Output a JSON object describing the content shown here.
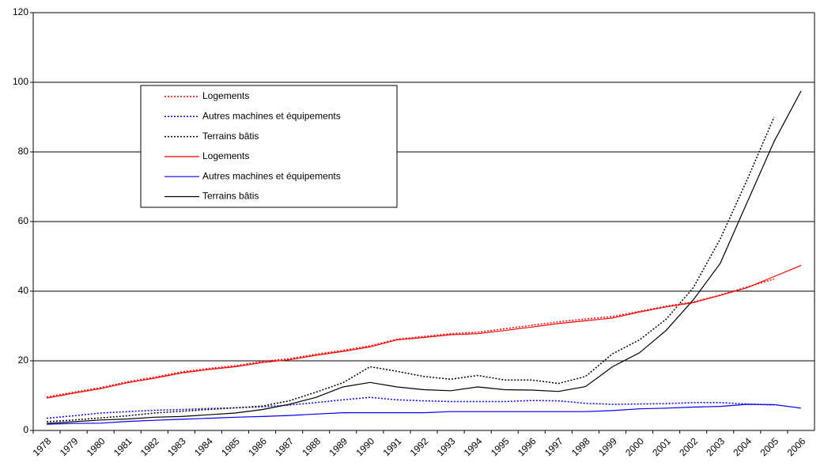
{
  "chart_data": {
    "type": "line",
    "categories": [
      "1978",
      "1979",
      "1980",
      "1981",
      "1982",
      "1983",
      "1984",
      "1985",
      "1986",
      "1987",
      "1988",
      "1989",
      "1990",
      "1991",
      "1992",
      "1993",
      "1994",
      "1995",
      "1996",
      "1997",
      "1998",
      "1999",
      "2000",
      "2001",
      "2002",
      "2003",
      "2004",
      "2005",
      "2006"
    ],
    "series": [
      {
        "name": "Logements",
        "color": "#ff0000",
        "dash": true,
        "values": [
          9.6,
          11,
          12.3,
          14,
          15.3,
          16.8,
          17.8,
          18.6,
          19.8,
          20.6,
          21.9,
          23,
          24.3,
          26.2,
          27,
          27.8,
          28.2,
          29.2,
          30.2,
          31.2,
          32,
          32.7,
          34.2,
          35.7,
          36.9,
          38.9,
          41.2,
          43.5,
          null
        ]
      },
      {
        "name": "Autres machines et équipements",
        "color": "#0000ff",
        "dash": true,
        "values": [
          3.5,
          4.2,
          5,
          5.4,
          5.8,
          6,
          6.3,
          6.5,
          6.8,
          7.3,
          8,
          8.8,
          9.5,
          8.8,
          8.5,
          8.3,
          8.3,
          8.3,
          8.6,
          8.5,
          7.8,
          7.5,
          7.6,
          7.7,
          8,
          8,
          7.6,
          7.3,
          null
        ]
      },
      {
        "name": "Terrains bâtis",
        "color": "#000000",
        "dash": true,
        "values": [
          2.5,
          3,
          3.6,
          4.2,
          5,
          5.5,
          6,
          6.5,
          7,
          8.5,
          11,
          13.7,
          18.3,
          17,
          15.5,
          14.7,
          15.8,
          14.5,
          14.5,
          13.5,
          15.5,
          22,
          26,
          32,
          41,
          55,
          72,
          90,
          null
        ]
      },
      {
        "name": "Logements",
        "color": "#ff0000",
        "dash": false,
        "values": [
          9.3,
          10.7,
          12,
          13.7,
          15,
          16.5,
          17.5,
          18.3,
          19.5,
          20.3,
          21.6,
          22.7,
          24,
          26,
          26.7,
          27.5,
          27.8,
          28.7,
          29.7,
          30.7,
          31.5,
          32.3,
          34,
          35.5,
          36.7,
          38.8,
          41,
          44.2,
          47.4
        ]
      },
      {
        "name": "Autres machines et équipements",
        "color": "#0000ff",
        "dash": false,
        "values": [
          1.8,
          2,
          2.1,
          2.6,
          2.9,
          3.2,
          3.5,
          3.8,
          4,
          4.3,
          4.7,
          5.1,
          5.1,
          5.1,
          5.1,
          5.4,
          5.4,
          5.4,
          5.4,
          5.4,
          5.4,
          5.7,
          6.2,
          6.4,
          6.7,
          6.9,
          7.5,
          7.4,
          6.4
        ]
      },
      {
        "name": "Terrains bâtis",
        "color": "#000000",
        "dash": false,
        "values": [
          2,
          2.5,
          3,
          3.3,
          3.8,
          4,
          4.5,
          5,
          6,
          7.5,
          9.5,
          12.5,
          13.8,
          12.5,
          11.7,
          11.4,
          12.5,
          11.7,
          11.6,
          11.2,
          12.6,
          18.3,
          22.3,
          28.8,
          37.5,
          48,
          65.5,
          83,
          97.5
        ]
      }
    ],
    "ylim": [
      0,
      120
    ],
    "yticks": [
      0,
      20,
      40,
      60,
      80,
      100,
      120
    ],
    "grid": true
  }
}
